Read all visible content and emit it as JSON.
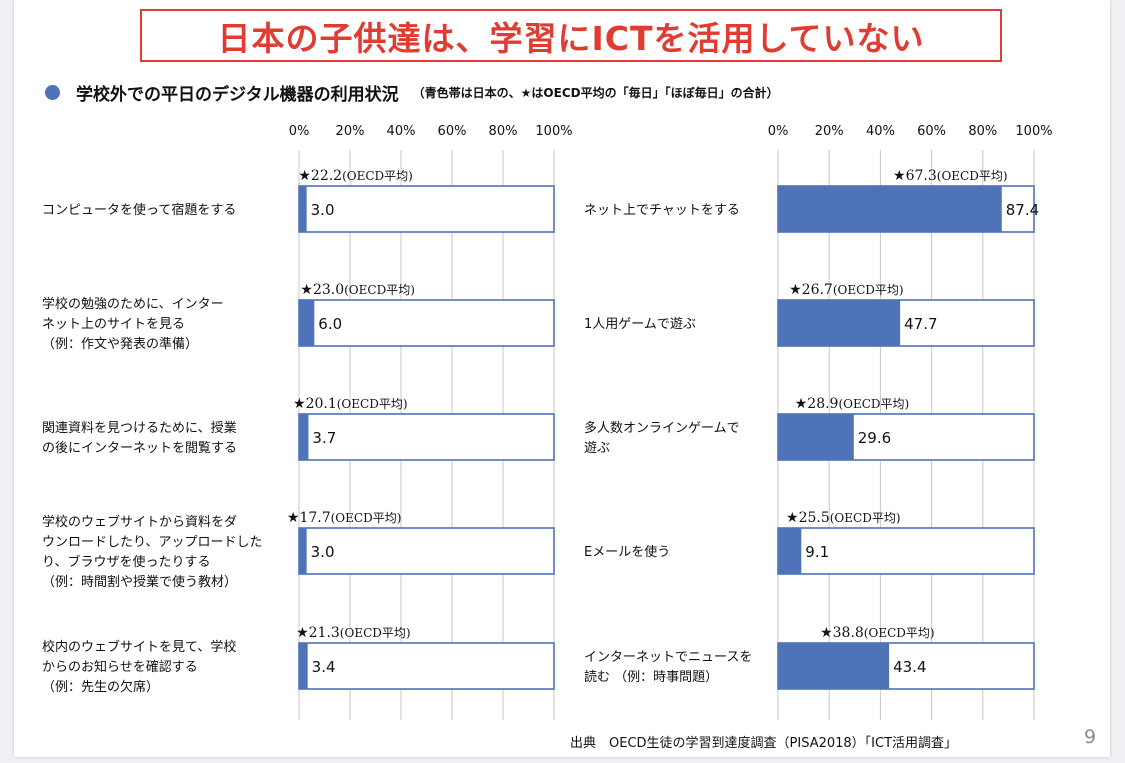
{
  "slide": {
    "title": "日本の子供達は、学習にICTを活用していない",
    "subtitle": "学校外での平日のデジタル機器の利用状況",
    "subtitle_note": "（青色帯は日本の、★はOECD平均の「毎日」「ほぼ毎日」の合計）",
    "source": "出典　OECD生徒の学習到達度調査（PISA2018）「ICT活用調査」",
    "page_number": "9"
  },
  "colors": {
    "accent": "#e03c31",
    "bar_fill": "#4e73b8",
    "bar_border": "#4e73b8",
    "grid": "#c8c8c8"
  },
  "chart_data": [
    {
      "type": "bar",
      "orientation": "horizontal",
      "title": "",
      "xlabel": "",
      "ylabel": "",
      "xlim": [
        0,
        100
      ],
      "tick_labels": [
        "0%",
        "20%",
        "40%",
        "60%",
        "80%",
        "100%"
      ],
      "oecd_suffix": "(OECD平均)",
      "categories": [
        "コンピュータを使って宿題をする",
        "学校の勉強のために、インター\nネット上のサイトを見る\n（例：作文や発表の準備）",
        "関連資料を見つけるために、授業\nの後にインターネットを閲覧する",
        "学校のウェブサイトから資料をダ\nウンロードしたり、アップロードした\nり、ブラウザを使ったりする\n（例：時間割や授業で使う教材）",
        "校内のウェブサイトを見て、学校\nからのお知らせを確認する\n（例：先生の欠席）"
      ],
      "series": [
        {
          "name": "日本",
          "values": [
            3.0,
            6.0,
            3.7,
            3.0,
            3.4
          ],
          "labels": [
            "3.0",
            "6.0",
            "3.7",
            "3.0",
            "3.4"
          ]
        },
        {
          "name": "OECD平均",
          "values": [
            22.2,
            23.0,
            20.1,
            17.7,
            21.3
          ],
          "labels": [
            "22.2",
            "23.0",
            "20.1",
            "17.7",
            "21.3"
          ]
        }
      ]
    },
    {
      "type": "bar",
      "orientation": "horizontal",
      "title": "",
      "xlabel": "",
      "ylabel": "",
      "xlim": [
        0,
        100
      ],
      "tick_labels": [
        "0%",
        "20%",
        "40%",
        "60%",
        "80%",
        "100%"
      ],
      "oecd_suffix": "(OECD平均)",
      "categories": [
        "ネット上でチャットをする",
        "1人用ゲームで遊ぶ",
        "多人数オンラインゲームで\n遊ぶ",
        "Eメールを使う",
        "インターネットでニュースを\n読む （例：時事問題）"
      ],
      "series": [
        {
          "name": "日本",
          "values": [
            87.4,
            47.7,
            29.6,
            9.1,
            43.4
          ],
          "labels": [
            "87.4",
            "47.7",
            "29.6",
            "9.1",
            "43.4"
          ]
        },
        {
          "name": "OECD平均",
          "values": [
            67.3,
            26.7,
            28.9,
            25.5,
            38.8
          ],
          "labels": [
            "67.3",
            "26.7",
            "28.9",
            "25.5",
            "38.8"
          ]
        }
      ]
    }
  ]
}
